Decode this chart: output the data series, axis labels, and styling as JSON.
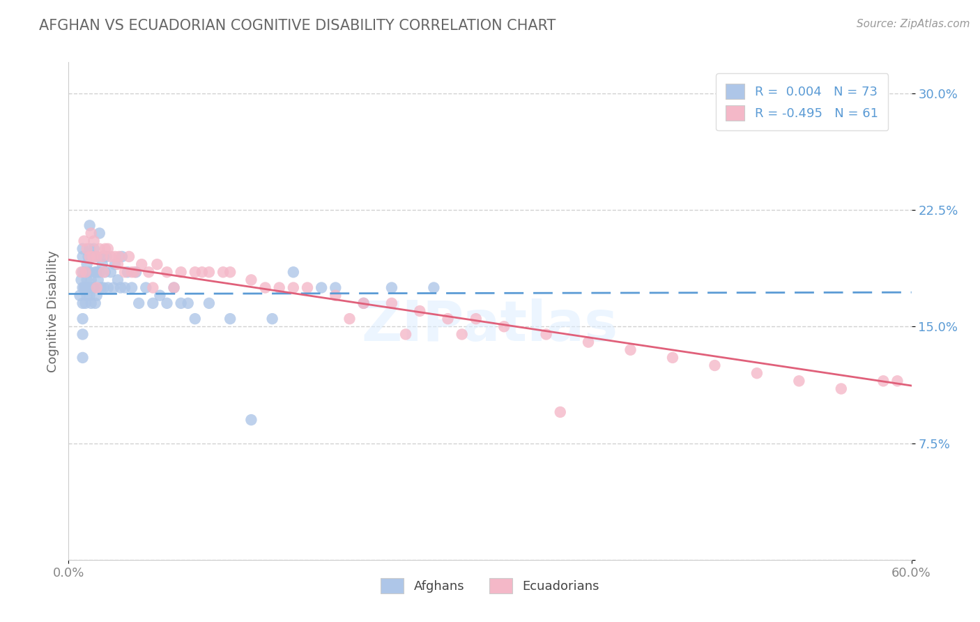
{
  "title": "AFGHAN VS ECUADORIAN COGNITIVE DISABILITY CORRELATION CHART",
  "source_text": "Source: ZipAtlas.com",
  "ylabel": "Cognitive Disability",
  "xlim": [
    0.0,
    0.6
  ],
  "ylim": [
    0.0,
    0.32
  ],
  "ytick_vals": [
    0.0,
    0.075,
    0.15,
    0.225,
    0.3
  ],
  "ytick_labels": [
    "",
    "7.5%",
    "15.0%",
    "22.5%",
    "30.0%"
  ],
  "xtick_vals": [
    0.0,
    0.6
  ],
  "xtick_labels": [
    "0.0%",
    "60.0%"
  ],
  "afghan_color": "#aec6e8",
  "ecuadorian_color": "#f4b8c8",
  "afghan_line_color": "#5b9bd5",
  "ecuadorian_line_color": "#e0607a",
  "tick_color": "#5b9bd5",
  "legend_text_color": "#5b9bd5",
  "watermark": "ZIPatlas",
  "background_color": "#ffffff",
  "grid_color": "#cccccc",
  "title_color": "#666666",
  "source_color": "#999999",
  "ylabel_color": "#666666",
  "afghan_scatter": {
    "x": [
      0.008,
      0.009,
      0.01,
      0.01,
      0.01,
      0.01,
      0.01,
      0.01,
      0.01,
      0.01,
      0.011,
      0.012,
      0.012,
      0.012,
      0.013,
      0.013,
      0.013,
      0.014,
      0.014,
      0.015,
      0.015,
      0.015,
      0.015,
      0.016,
      0.016,
      0.017,
      0.017,
      0.018,
      0.018,
      0.019,
      0.019,
      0.02,
      0.02,
      0.02,
      0.021,
      0.022,
      0.022,
      0.023,
      0.024,
      0.025,
      0.025,
      0.026,
      0.027,
      0.028,
      0.03,
      0.032,
      0.033,
      0.035,
      0.037,
      0.038,
      0.04,
      0.042,
      0.045,
      0.048,
      0.05,
      0.055,
      0.06,
      0.065,
      0.07,
      0.075,
      0.08,
      0.085,
      0.09,
      0.1,
      0.115,
      0.13,
      0.145,
      0.16,
      0.18,
      0.19,
      0.21,
      0.23,
      0.26
    ],
    "y": [
      0.17,
      0.18,
      0.2,
      0.195,
      0.185,
      0.175,
      0.165,
      0.155,
      0.145,
      0.13,
      0.175,
      0.185,
      0.175,
      0.165,
      0.19,
      0.18,
      0.17,
      0.195,
      0.175,
      0.215,
      0.2,
      0.185,
      0.17,
      0.18,
      0.165,
      0.195,
      0.175,
      0.2,
      0.175,
      0.185,
      0.165,
      0.195,
      0.185,
      0.17,
      0.18,
      0.21,
      0.185,
      0.175,
      0.19,
      0.195,
      0.175,
      0.185,
      0.195,
      0.175,
      0.185,
      0.175,
      0.19,
      0.18,
      0.175,
      0.195,
      0.175,
      0.185,
      0.175,
      0.185,
      0.165,
      0.175,
      0.165,
      0.17,
      0.165,
      0.175,
      0.165,
      0.165,
      0.155,
      0.165,
      0.155,
      0.09,
      0.155,
      0.185,
      0.175,
      0.175,
      0.165,
      0.175,
      0.175
    ]
  },
  "ecuadorian_scatter": {
    "x": [
      0.009,
      0.011,
      0.012,
      0.013,
      0.015,
      0.016,
      0.017,
      0.018,
      0.02,
      0.022,
      0.024,
      0.026,
      0.028,
      0.03,
      0.033,
      0.036,
      0.04,
      0.043,
      0.047,
      0.052,
      0.057,
      0.063,
      0.07,
      0.08,
      0.09,
      0.1,
      0.115,
      0.13,
      0.15,
      0.17,
      0.19,
      0.21,
      0.23,
      0.25,
      0.27,
      0.29,
      0.31,
      0.34,
      0.37,
      0.4,
      0.43,
      0.46,
      0.49,
      0.52,
      0.55,
      0.58,
      0.02,
      0.025,
      0.035,
      0.045,
      0.06,
      0.075,
      0.095,
      0.11,
      0.14,
      0.16,
      0.2,
      0.24,
      0.28,
      0.35,
      0.59
    ],
    "y": [
      0.185,
      0.205,
      0.185,
      0.2,
      0.195,
      0.21,
      0.195,
      0.205,
      0.195,
      0.2,
      0.195,
      0.2,
      0.2,
      0.195,
      0.195,
      0.195,
      0.185,
      0.195,
      0.185,
      0.19,
      0.185,
      0.19,
      0.185,
      0.185,
      0.185,
      0.185,
      0.185,
      0.18,
      0.175,
      0.175,
      0.17,
      0.165,
      0.165,
      0.16,
      0.155,
      0.155,
      0.15,
      0.145,
      0.14,
      0.135,
      0.13,
      0.125,
      0.12,
      0.115,
      0.11,
      0.115,
      0.175,
      0.185,
      0.19,
      0.185,
      0.175,
      0.175,
      0.185,
      0.185,
      0.175,
      0.175,
      0.155,
      0.145,
      0.145,
      0.095,
      0.115
    ]
  },
  "afghan_line": {
    "x0": 0.0,
    "x1": 0.6,
    "y0": 0.171,
    "y1": 0.172
  },
  "ecuadorian_line": {
    "x0": 0.0,
    "x1": 0.6,
    "y0": 0.193,
    "y1": 0.112
  }
}
